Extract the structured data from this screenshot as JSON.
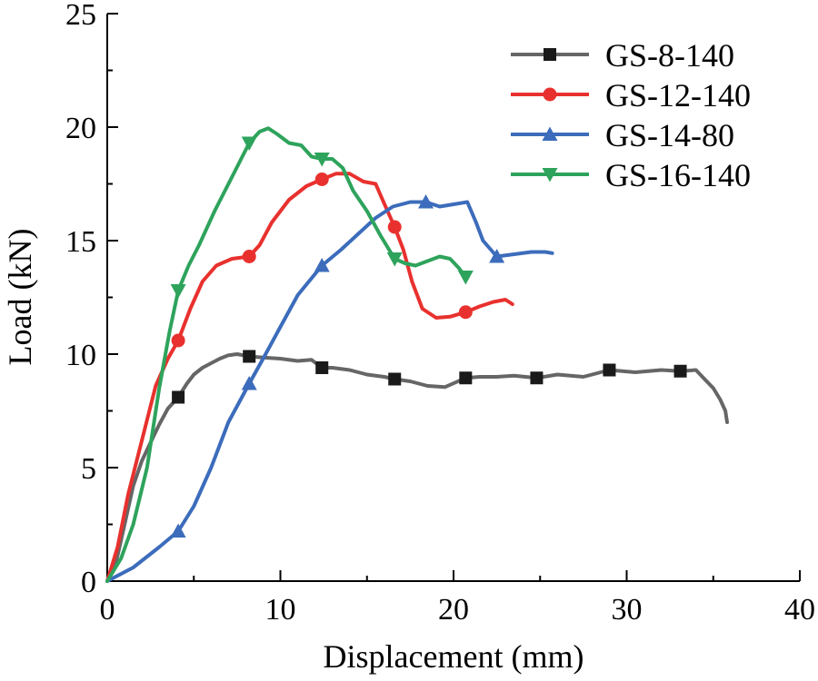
{
  "chart_data": {
    "type": "line",
    "title": "",
    "xlabel": "Displacement (mm)",
    "ylabel": "Load (kN)",
    "xlim": [
      0,
      40
    ],
    "ylim": [
      0,
      25
    ],
    "xticks": [
      "0",
      "10",
      "20",
      "30",
      "40"
    ],
    "yticks": [
      "0",
      "5",
      "10",
      "15",
      "20",
      "25"
    ],
    "legend_position": "top-right",
    "series": [
      {
        "name": "GS-8-140",
        "color": "#666666",
        "marker": "square",
        "x": [
          0,
          0.5,
          1,
          1.5,
          2,
          2.5,
          3,
          3.5,
          4.1,
          4.6,
          5,
          5.5,
          6,
          6.5,
          7,
          7.5,
          8.2,
          9,
          10,
          11,
          11.8,
          12.4,
          13,
          14,
          15,
          16,
          16.6,
          17.5,
          18.5,
          19.5,
          20.7,
          21.5,
          22.5,
          23.5,
          24.8,
          26,
          27.5,
          29,
          30.5,
          32,
          33.1,
          34,
          34.5,
          35,
          35.4,
          35.7,
          35.8
        ],
        "y": [
          0,
          0.8,
          2.5,
          4.2,
          5.3,
          6.1,
          6.9,
          7.6,
          8.1,
          8.7,
          9.1,
          9.4,
          9.6,
          9.8,
          9.95,
          10.0,
          9.9,
          9.85,
          9.8,
          9.7,
          9.75,
          9.4,
          9.4,
          9.3,
          9.1,
          9.0,
          8.9,
          8.8,
          8.6,
          8.55,
          8.95,
          9.0,
          9.0,
          9.05,
          8.95,
          9.1,
          9.0,
          9.3,
          9.2,
          9.3,
          9.25,
          9.3,
          8.9,
          8.5,
          8.0,
          7.5,
          7.0
        ],
        "markers": [
          [
            4.1,
            8.1
          ],
          [
            8.2,
            9.9
          ],
          [
            12.4,
            9.4
          ],
          [
            16.6,
            8.9
          ],
          [
            20.7,
            8.95
          ],
          [
            24.8,
            8.95
          ],
          [
            29.0,
            9.3
          ],
          [
            33.1,
            9.25
          ]
        ]
      },
      {
        "name": "GS-12-140",
        "color": "#e8312e",
        "marker": "circle",
        "x": [
          0,
          0.6,
          1.2,
          2,
          2.8,
          3.5,
          4.1,
          4.8,
          5.5,
          6.3,
          7.2,
          8.2,
          8.8,
          9.5,
          10.5,
          11.5,
          12.4,
          13.2,
          14,
          14.8,
          15.5,
          15.9,
          16.6,
          17.1,
          17.6,
          18.2,
          19,
          19.8,
          20.7,
          21.5,
          22.3,
          23,
          23.4
        ],
        "y": [
          0,
          1.5,
          3.8,
          6.2,
          8.6,
          9.8,
          10.6,
          12.0,
          13.2,
          13.9,
          14.2,
          14.3,
          14.8,
          15.8,
          16.8,
          17.4,
          17.7,
          17.95,
          17.95,
          17.6,
          17.5,
          16.8,
          15.6,
          14.6,
          13.2,
          12.0,
          11.6,
          11.65,
          11.85,
          12.1,
          12.3,
          12.4,
          12.2
        ],
        "markers": [
          [
            4.1,
            10.6
          ],
          [
            8.2,
            14.3
          ],
          [
            12.4,
            17.7
          ],
          [
            16.6,
            15.6
          ],
          [
            20.7,
            11.85
          ]
        ]
      },
      {
        "name": "GS-14-80",
        "color": "#3c6cbb",
        "marker": "triangle-up",
        "x": [
          0,
          1.5,
          3,
          4.1,
          5,
          6,
          7,
          8.2,
          9,
          10,
          11,
          12.4,
          13.5,
          14.5,
          15.5,
          16.5,
          17.5,
          18.4,
          19.2,
          20,
          20.8,
          21.3,
          21.7,
          22.5,
          23.5,
          24.5,
          25.3,
          25.7
        ],
        "y": [
          0,
          0.6,
          1.5,
          2.2,
          3.3,
          5.0,
          7.0,
          8.7,
          9.8,
          11.2,
          12.6,
          13.9,
          14.6,
          15.3,
          16.0,
          16.5,
          16.7,
          16.7,
          16.5,
          16.6,
          16.7,
          15.8,
          15.0,
          14.3,
          14.4,
          14.5,
          14.5,
          14.45
        ],
        "markers": [
          [
            4.1,
            2.2
          ],
          [
            8.2,
            8.7
          ],
          [
            12.4,
            13.9
          ],
          [
            18.4,
            16.7
          ],
          [
            22.5,
            14.3
          ]
        ]
      },
      {
        "name": "GS-16-140",
        "color": "#2ea35c",
        "marker": "triangle-down",
        "x": [
          0,
          0.8,
          1.5,
          2.3,
          3,
          3.6,
          4.1,
          4.7,
          5.3,
          6.2,
          7.2,
          8.2,
          8.8,
          9.3,
          9.8,
          10.5,
          11.2,
          11.8,
          12.4,
          13,
          13.6,
          14.2,
          15,
          15.8,
          16.6,
          17.2,
          17.8,
          18.5,
          19.2,
          19.8,
          20.3,
          20.7
        ],
        "y": [
          0,
          1.0,
          2.5,
          5.0,
          8.5,
          11.0,
          12.8,
          13.9,
          14.8,
          16.3,
          17.8,
          19.3,
          19.8,
          19.95,
          19.7,
          19.3,
          19.2,
          18.7,
          18.6,
          18.6,
          18.2,
          17.2,
          16.3,
          15.2,
          14.2,
          14.0,
          13.9,
          14.1,
          14.3,
          14.2,
          13.8,
          13.4
        ],
        "markers": [
          [
            4.1,
            12.8
          ],
          [
            8.2,
            19.3
          ],
          [
            12.4,
            18.6
          ],
          [
            16.6,
            14.2
          ],
          [
            20.7,
            13.4
          ]
        ]
      }
    ]
  }
}
